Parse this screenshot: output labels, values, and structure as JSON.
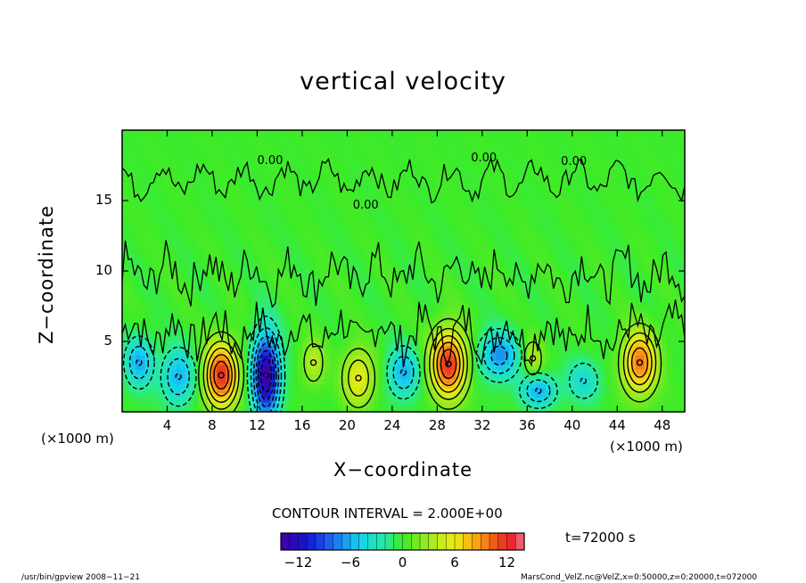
{
  "chart_data": {
    "type": "heatmap",
    "title": "vertical velocity",
    "xlabel": "X−coordinate",
    "ylabel": "Z−coordinate",
    "x_unit": "(×1000 m)",
    "x_unit_right": "(×1000 m)",
    "xlim": [
      0,
      50
    ],
    "ylim": [
      0,
      20
    ],
    "x_ticks": [
      4,
      8,
      12,
      16,
      20,
      24,
      28,
      32,
      36,
      40,
      44,
      48
    ],
    "x_tick_labels": [
      "4",
      "8",
      "12",
      "16",
      "20",
      "24",
      "28",
      "32",
      "36",
      "40",
      "44",
      "48"
    ],
    "y_ticks": [
      5,
      10,
      15
    ],
    "y_tick_labels": [
      "5",
      "10",
      "15"
    ],
    "contour_labels": [
      "0.00",
      "0.00",
      "0.00",
      "0.00"
    ],
    "cells": [
      {
        "x": 8.8,
        "z": 2.6,
        "value": 12,
        "sx": 1.5,
        "sz": 2.3
      },
      {
        "x": 12.8,
        "z": 2.6,
        "value": -14,
        "sx": 1.2,
        "sz": 3.0
      },
      {
        "x": 21.0,
        "z": 2.4,
        "value": 6,
        "sx": 1.4,
        "sz": 2.0
      },
      {
        "x": 29.0,
        "z": 3.4,
        "value": 12,
        "sx": 1.6,
        "sz": 2.4
      },
      {
        "x": 46.0,
        "z": 3.5,
        "value": 10,
        "sx": 1.5,
        "sz": 2.2
      },
      {
        "x": 17.0,
        "z": 3.5,
        "value": 4,
        "sx": 1.0,
        "sz": 1.6
      },
      {
        "x": 36.5,
        "z": 3.8,
        "value": 4,
        "sx": 0.9,
        "sz": 1.4
      },
      {
        "x": 1.5,
        "z": 3.5,
        "value": -6,
        "sx": 1.3,
        "sz": 1.8
      },
      {
        "x": 5.0,
        "z": 2.5,
        "value": -6,
        "sx": 1.5,
        "sz": 2.0
      },
      {
        "x": 25.0,
        "z": 2.8,
        "value": -6,
        "sx": 1.4,
        "sz": 1.8
      },
      {
        "x": 33.5,
        "z": 4.0,
        "value": -7,
        "sx": 1.8,
        "sz": 1.7
      },
      {
        "x": 37.0,
        "z": 1.5,
        "value": -6,
        "sx": 1.6,
        "sz": 1.2
      },
      {
        "x": 41.0,
        "z": 2.2,
        "value": -4,
        "sx": 1.5,
        "sz": 1.5
      }
    ],
    "colorbar": {
      "min": -14,
      "max": 14,
      "step": 2,
      "tick_values": [
        -12,
        -6,
        0,
        6,
        12
      ],
      "tick_labels": [
        "−12",
        "−6",
        "0",
        "6",
        "12"
      ]
    },
    "grid": false
  },
  "annotations": {
    "contour_interval": "CONTOUR INTERVAL = 2.000E+00",
    "time": "t=72000 s",
    "footer_left": "/usr/bin/gpview   2008−11−21",
    "footer_right": "MarsCond_VelZ.nc@VelZ,x=0:50000,z=0:20000,t=072000"
  }
}
